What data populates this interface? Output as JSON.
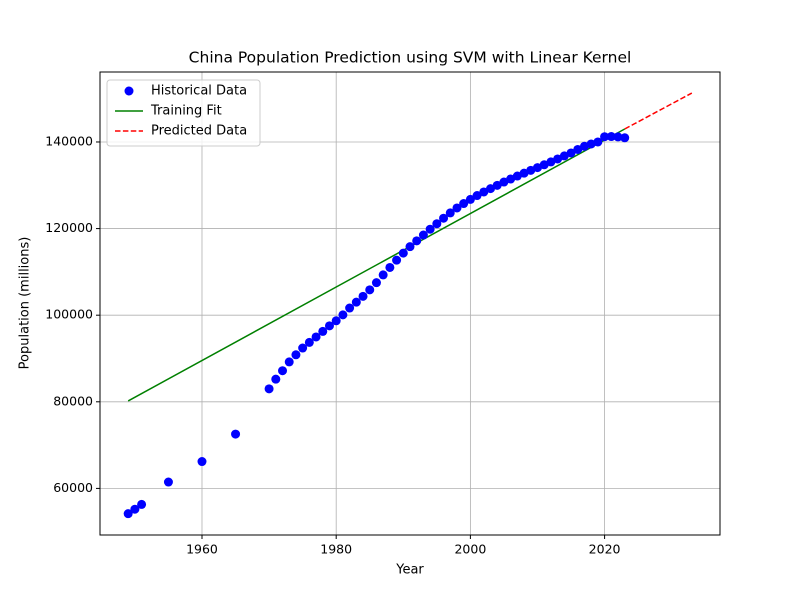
{
  "chart_data": {
    "type": "scatter",
    "title": "China Population Prediction using SVM with Linear Kernel",
    "x_label": "Year",
    "y_label": "Population (millions)",
    "xlim": [
      1944.8,
      2037.2
    ],
    "ylim": [
      49240,
      156160
    ],
    "xticks": [
      1960,
      1980,
      2000,
      2020
    ],
    "yticks": [
      60000,
      80000,
      100000,
      120000,
      140000
    ],
    "grid": true,
    "legend": "upper-left",
    "series": [
      {
        "name": "Historical Data",
        "color": "#0000ff",
        "style": "points",
        "x": [
          1949,
          1950,
          1951,
          1955,
          1960,
          1965,
          1970,
          1971,
          1972,
          1973,
          1974,
          1975,
          1976,
          1977,
          1978,
          1979,
          1980,
          1981,
          1982,
          1983,
          1984,
          1985,
          1986,
          1987,
          1988,
          1989,
          1990,
          1991,
          1992,
          1993,
          1994,
          1995,
          1996,
          1997,
          1998,
          1999,
          2000,
          2001,
          2002,
          2003,
          2004,
          2005,
          2006,
          2007,
          2008,
          2009,
          2010,
          2011,
          2012,
          2013,
          2014,
          2015,
          2016,
          2017,
          2018,
          2019,
          2020,
          2021,
          2022,
          2023
        ],
        "values": [
          54167,
          55196,
          56300,
          61465,
          66207,
          72538,
          82992,
          85229,
          87177,
          89211,
          90859,
          92420,
          93717,
          94974,
          96259,
          97542,
          98705,
          100072,
          101654,
          103008,
          104357,
          105851,
          107507,
          109300,
          111026,
          112704,
          114333,
          115823,
          117171,
          118517,
          119850,
          121121,
          122389,
          123626,
          124761,
          125786,
          126743,
          127627,
          128453,
          129227,
          129988,
          130756,
          131448,
          132129,
          132802,
          133450,
          134091,
          134735,
          135404,
          136072,
          136782,
          137462,
          138271,
          139008,
          139538,
          140005,
          141212,
          141260,
          141175,
          140967
        ]
      },
      {
        "name": "Training Fit",
        "color": "#008000",
        "style": "solid",
        "x": [
          1949,
          2023
        ],
        "values": [
          80200,
          143000
        ]
      },
      {
        "name": "Predicted Data",
        "color": "#ff0000",
        "style": "dashed",
        "x": [
          2023,
          2033
        ],
        "values": [
          143000,
          151300
        ]
      }
    ]
  }
}
